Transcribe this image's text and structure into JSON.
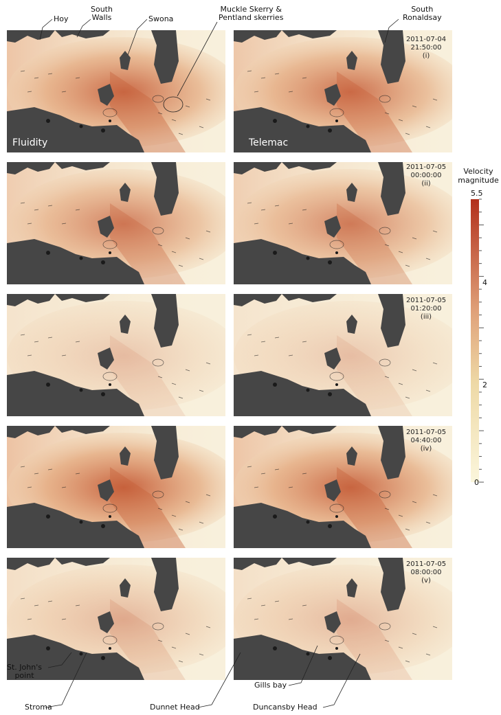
{
  "models": [
    "Fluidity",
    "Telemac"
  ],
  "timestamps": [
    {
      "date": "2011-07-04",
      "time": "21:50:00",
      "index": "(i)"
    },
    {
      "date": "2011-07-05",
      "time": "00:00:00",
      "index": "(ii)"
    },
    {
      "date": "2011-07-05",
      "time": "01:20:00",
      "index": "(iii)"
    },
    {
      "date": "2011-07-05",
      "time": "04:40:00",
      "index": "(iv)"
    },
    {
      "date": "2011-07-05",
      "time": "08:00:00",
      "index": "(v)"
    }
  ],
  "colorbar": {
    "title": "Velocity magnitude",
    "title_line1": "Velocity",
    "title_line2": "magnitude",
    "max_label": "5.5",
    "tick_labels": [
      "4",
      "2",
      "0"
    ],
    "range": [
      0,
      5.5
    ],
    "color_low": "#fbf6dc",
    "color_mid": "#e7b98a",
    "color_high": "#b2301c"
  },
  "place_labels": {
    "hoy": "Hoy",
    "south_walls_1": "South",
    "south_walls_2": "Walls",
    "swona": "Swona",
    "muckle_1": "Muckle Skerry &",
    "muckle_2": "Pentland skerries",
    "south_ronaldsay_1": "South",
    "south_ronaldsay_2": "Ronaldsay",
    "st_johns_1": "St. John's",
    "st_johns_2": "point",
    "stroma": "Stroma",
    "dunnet_head": "Dunnet Head",
    "gills_bay": "Gills bay",
    "duncansby_head": "Duncansby Head"
  },
  "colors": {
    "land": "#464646",
    "coast": "#e6e6e6"
  }
}
